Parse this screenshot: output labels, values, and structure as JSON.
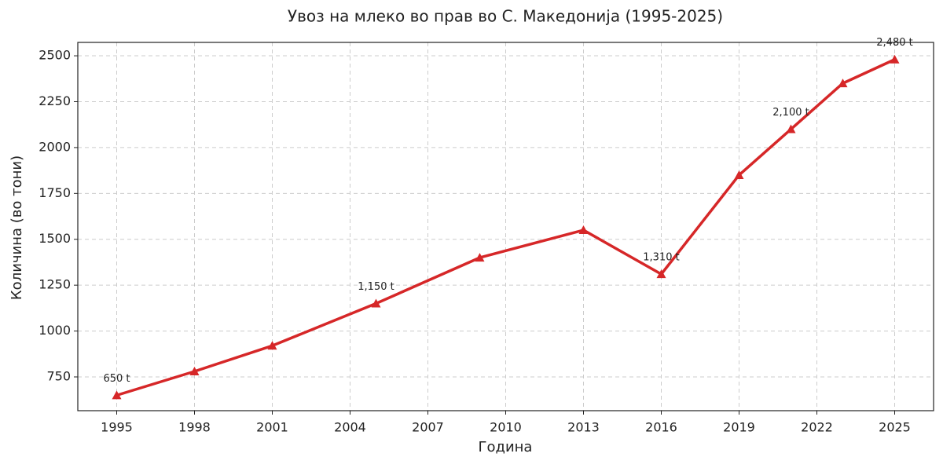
{
  "chart_data": {
    "type": "line",
    "title": "Увоз на млеко во прав во С. Македонија (1995-2025)",
    "x_label": "Година",
    "y_label": "Количина (во тони)",
    "x": [
      1995,
      1998,
      2001,
      2005,
      2009,
      2013,
      2016,
      2019,
      2021,
      2023,
      2025
    ],
    "values": [
      650,
      780,
      920,
      1150,
      1400,
      1550,
      1310,
      1850,
      2100,
      2350,
      2480
    ],
    "value_labels": [
      "650 t",
      null,
      null,
      "1,150 t",
      null,
      null,
      "1,310 t",
      null,
      "2,100 t",
      null,
      "2,480 t"
    ],
    "color": "#d62728",
    "xlim": [
      1993.5,
      2026.5
    ],
    "xticks": [
      1995,
      1998,
      2001,
      2004,
      2007,
      2010,
      2013,
      2016,
      2019,
      2022,
      2025
    ],
    "ylim": [
      566,
      2573
    ],
    "yticks": [
      750,
      1000,
      1250,
      1500,
      1750,
      2000,
      2250,
      2500
    ],
    "grid": true
  }
}
